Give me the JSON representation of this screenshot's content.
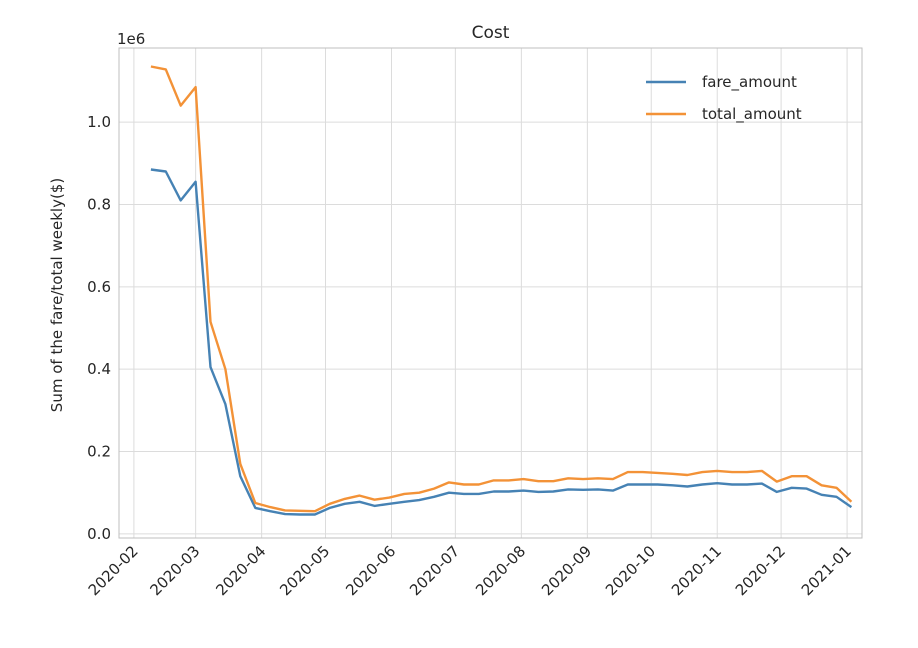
{
  "chart_data": {
    "type": "line",
    "title": "Cost",
    "xlabel": "",
    "ylabel": "Sum of the fare/total weekly($)",
    "y_offset_label": "1e6",
    "xlim": [
      "2020-01-25",
      "2021-01-08"
    ],
    "ylim": [
      -0.01,
      1.18
    ],
    "y_ticks": [
      0.0,
      0.2,
      0.4,
      0.6,
      0.8,
      1.0
    ],
    "y_tick_labels": [
      "0.0",
      "0.2",
      "0.4",
      "0.6",
      "0.8",
      "1.0"
    ],
    "x_ticks": [
      "2020-02-01",
      "2020-03-01",
      "2020-04-01",
      "2020-05-01",
      "2020-06-01",
      "2020-07-01",
      "2020-08-01",
      "2020-09-01",
      "2020-10-01",
      "2020-11-01",
      "2020-12-01",
      "2021-01-01"
    ],
    "x_tick_labels": [
      "2020-02",
      "2020-03",
      "2020-04",
      "2020-05",
      "2020-06",
      "2020-07",
      "2020-08",
      "2020-09",
      "2020-10",
      "2020-11",
      "2020-12",
      "2021-01"
    ],
    "grid": true,
    "legend_position": "top-right",
    "x": [
      "2020-02-09",
      "2020-02-16",
      "2020-02-23",
      "2020-03-01",
      "2020-03-08",
      "2020-03-15",
      "2020-03-22",
      "2020-03-29",
      "2020-04-05",
      "2020-04-12",
      "2020-04-19",
      "2020-04-26",
      "2020-05-03",
      "2020-05-10",
      "2020-05-17",
      "2020-05-24",
      "2020-05-31",
      "2020-06-07",
      "2020-06-14",
      "2020-06-21",
      "2020-06-28",
      "2020-07-05",
      "2020-07-12",
      "2020-07-19",
      "2020-07-26",
      "2020-08-02",
      "2020-08-09",
      "2020-08-16",
      "2020-08-23",
      "2020-08-30",
      "2020-09-06",
      "2020-09-13",
      "2020-09-20",
      "2020-09-27",
      "2020-10-04",
      "2020-10-11",
      "2020-10-18",
      "2020-10-25",
      "2020-11-01",
      "2020-11-08",
      "2020-11-15",
      "2020-11-22",
      "2020-11-29",
      "2020-12-06",
      "2020-12-13",
      "2020-12-20",
      "2020-12-27",
      "2021-01-03"
    ],
    "series": [
      {
        "name": "fare_amount",
        "color": "#4682b4",
        "values": [
          0.885,
          0.88,
          0.81,
          0.855,
          0.405,
          0.315,
          0.14,
          0.063,
          0.055,
          0.048,
          0.047,
          0.047,
          0.063,
          0.073,
          0.078,
          0.068,
          0.073,
          0.078,
          0.082,
          0.09,
          0.1,
          0.097,
          0.097,
          0.103,
          0.103,
          0.105,
          0.102,
          0.103,
          0.108,
          0.107,
          0.108,
          0.105,
          0.12,
          0.12,
          0.12,
          0.118,
          0.115,
          0.12,
          0.123,
          0.12,
          0.12,
          0.122,
          0.102,
          0.112,
          0.11,
          0.095,
          0.09,
          0.065
        ]
      },
      {
        "name": "total_amount",
        "color": "#f39237",
        "values": [
          1.135,
          1.128,
          1.04,
          1.085,
          0.515,
          0.4,
          0.17,
          0.075,
          0.065,
          0.057,
          0.056,
          0.055,
          0.073,
          0.085,
          0.093,
          0.083,
          0.088,
          0.097,
          0.1,
          0.11,
          0.125,
          0.12,
          0.12,
          0.13,
          0.13,
          0.133,
          0.128,
          0.128,
          0.135,
          0.133,
          0.135,
          0.133,
          0.15,
          0.15,
          0.148,
          0.146,
          0.143,
          0.15,
          0.153,
          0.15,
          0.15,
          0.153,
          0.127,
          0.14,
          0.14,
          0.118,
          0.112,
          0.078
        ]
      }
    ]
  }
}
